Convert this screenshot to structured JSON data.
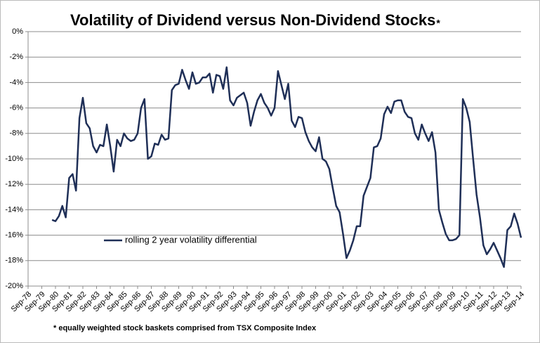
{
  "chart_data": {
    "type": "line",
    "title": "Volatility of Dividend versus Non-Dividend Stocks",
    "title_mark": "*",
    "footnote": "* equally weighted stock baskets comprised from TSX Composite Index",
    "grid": true,
    "legend_position": "lower left",
    "xlim": [
      "1978-09",
      "2014-09"
    ],
    "ylim": [
      -20,
      0
    ],
    "yticks": [
      {
        "value": 0,
        "label": "0%"
      },
      {
        "value": -2,
        "label": "-2%"
      },
      {
        "value": -4,
        "label": "-4%"
      },
      {
        "value": -6,
        "label": "-6%"
      },
      {
        "value": -8,
        "label": "-8%"
      },
      {
        "value": -10,
        "label": "-10%"
      },
      {
        "value": -12,
        "label": "-12%"
      },
      {
        "value": -14,
        "label": "-14%"
      },
      {
        "value": -16,
        "label": "-16%"
      },
      {
        "value": -18,
        "label": "-18%"
      },
      {
        "value": -20,
        "label": "-20%"
      }
    ],
    "xticks": [
      {
        "value": "1978-09",
        "label": "Sep-78"
      },
      {
        "value": "1979-09",
        "label": "Sep-79"
      },
      {
        "value": "1980-09",
        "label": "Sep-80"
      },
      {
        "value": "1981-09",
        "label": "Sep-81"
      },
      {
        "value": "1982-09",
        "label": "Sep-82"
      },
      {
        "value": "1983-09",
        "label": "Sep-83"
      },
      {
        "value": "1984-09",
        "label": "Sep-84"
      },
      {
        "value": "1985-09",
        "label": "Sep-85"
      },
      {
        "value": "1986-09",
        "label": "Sep-86"
      },
      {
        "value": "1987-09",
        "label": "Sep-87"
      },
      {
        "value": "1988-09",
        "label": "Sep-88"
      },
      {
        "value": "1989-09",
        "label": "Sep-89"
      },
      {
        "value": "1990-09",
        "label": "Sep-90"
      },
      {
        "value": "1991-09",
        "label": "Sep-91"
      },
      {
        "value": "1992-09",
        "label": "Sep-92"
      },
      {
        "value": "1993-09",
        "label": "Sep-93"
      },
      {
        "value": "1994-09",
        "label": "Sep-94"
      },
      {
        "value": "1995-09",
        "label": "Sep-95"
      },
      {
        "value": "1996-09",
        "label": "Sep-96"
      },
      {
        "value": "1997-09",
        "label": "Sep-97"
      },
      {
        "value": "1998-09",
        "label": "Sep-98"
      },
      {
        "value": "1999-09",
        "label": "Sep-99"
      },
      {
        "value": "2000-09",
        "label": "Sep-00"
      },
      {
        "value": "2001-09",
        "label": "Sep-01"
      },
      {
        "value": "2002-09",
        "label": "Sep-02"
      },
      {
        "value": "2003-09",
        "label": "Sep-03"
      },
      {
        "value": "2004-09",
        "label": "Sep-04"
      },
      {
        "value": "2005-09",
        "label": "Sep-05"
      },
      {
        "value": "2006-09",
        "label": "Sep-06"
      },
      {
        "value": "2007-09",
        "label": "Sep-07"
      },
      {
        "value": "2008-09",
        "label": "Sep-08"
      },
      {
        "value": "2009-09",
        "label": "Sep-09"
      },
      {
        "value": "2010-09",
        "label": "Sep-10"
      },
      {
        "value": "2011-09",
        "label": "Sep-11"
      },
      {
        "value": "2012-09",
        "label": "Sep-12"
      },
      {
        "value": "2013-09",
        "label": "Sep-13"
      },
      {
        "value": "2014-09",
        "label": "Sep-14"
      }
    ],
    "x": [
      "1980-06",
      "1980-09",
      "1980-12",
      "1981-03",
      "1981-06",
      "1981-09",
      "1981-12",
      "1982-03",
      "1982-06",
      "1982-09",
      "1982-12",
      "1983-03",
      "1983-06",
      "1983-09",
      "1983-12",
      "1984-03",
      "1984-06",
      "1984-09",
      "1984-12",
      "1985-03",
      "1985-06",
      "1985-09",
      "1985-12",
      "1986-03",
      "1986-06",
      "1986-09",
      "1986-12",
      "1987-03",
      "1987-06",
      "1987-09",
      "1987-12",
      "1988-03",
      "1988-06",
      "1988-09",
      "1988-12",
      "1989-03",
      "1989-06",
      "1989-09",
      "1989-12",
      "1990-03",
      "1990-06",
      "1990-09",
      "1990-12",
      "1991-03",
      "1991-06",
      "1991-09",
      "1991-12",
      "1992-03",
      "1992-06",
      "1992-09",
      "1992-12",
      "1993-03",
      "1993-06",
      "1993-09",
      "1993-12",
      "1994-03",
      "1994-06",
      "1994-09",
      "1994-12",
      "1995-03",
      "1995-06",
      "1995-09",
      "1995-12",
      "1996-03",
      "1996-06",
      "1996-09",
      "1996-12",
      "1997-03",
      "1997-06",
      "1997-09",
      "1997-12",
      "1998-03",
      "1998-06",
      "1998-09",
      "1998-12",
      "1999-03",
      "1999-06",
      "1999-09",
      "1999-12",
      "2000-03",
      "2000-06",
      "2000-09",
      "2000-12",
      "2001-03",
      "2001-06",
      "2001-09",
      "2001-12",
      "2002-03",
      "2002-06",
      "2002-09",
      "2002-12",
      "2003-03",
      "2003-06",
      "2003-09",
      "2003-12",
      "2004-03",
      "2004-06",
      "2004-09",
      "2004-12",
      "2005-03",
      "2005-06",
      "2005-09",
      "2005-12",
      "2006-03",
      "2006-06",
      "2006-09",
      "2006-12",
      "2007-03",
      "2007-06",
      "2007-09",
      "2007-12",
      "2008-03",
      "2008-06",
      "2008-09",
      "2008-12",
      "2009-03",
      "2009-06",
      "2009-09",
      "2009-12",
      "2010-03",
      "2010-06",
      "2010-09",
      "2010-12",
      "2011-03",
      "2011-06",
      "2011-09",
      "2011-12",
      "2012-03",
      "2012-06",
      "2012-09",
      "2012-12",
      "2013-03",
      "2013-06",
      "2013-09",
      "2013-12",
      "2014-03",
      "2014-06",
      "2014-09"
    ],
    "series": [
      {
        "name": "rolling 2 year volatility differential",
        "color": "#1f2f57",
        "values": [
          -14.8,
          -14.9,
          -14.5,
          -13.7,
          -14.6,
          -11.5,
          -11.2,
          -12.5,
          -6.8,
          -5.2,
          -7.2,
          -7.6,
          -9.0,
          -9.5,
          -8.9,
          -9.0,
          -7.3,
          -9.0,
          -11.0,
          -8.5,
          -9.0,
          -8.0,
          -8.4,
          -8.6,
          -8.5,
          -8.0,
          -6.0,
          -5.3,
          -10.0,
          -9.8,
          -8.8,
          -8.9,
          -8.1,
          -8.5,
          -8.4,
          -4.6,
          -4.2,
          -4.1,
          -3.0,
          -3.8,
          -4.5,
          -3.2,
          -4.1,
          -4.0,
          -3.6,
          -3.6,
          -3.3,
          -4.8,
          -3.4,
          -3.5,
          -4.5,
          -2.8,
          -5.4,
          -5.8,
          -5.2,
          -5.0,
          -4.8,
          -5.6,
          -7.4,
          -6.3,
          -5.4,
          -4.9,
          -5.6,
          -6.0,
          -6.6,
          -6.0,
          -3.1,
          -4.2,
          -5.3,
          -4.1,
          -7.0,
          -7.5,
          -6.7,
          -6.8,
          -7.9,
          -8.6,
          -9.1,
          -9.4,
          -8.3,
          -10.0,
          -10.2,
          -10.8,
          -12.3,
          -13.7,
          -14.2,
          -15.9,
          -17.8,
          -17.2,
          -16.4,
          -15.3,
          -15.3,
          -12.9,
          -12.2,
          -11.5,
          -9.1,
          -9.0,
          -8.4,
          -6.5,
          -5.9,
          -6.4,
          -5.5,
          -5.4,
          -5.4,
          -6.3,
          -6.7,
          -6.8,
          -8.0,
          -8.5,
          -7.3,
          -8.0,
          -8.6,
          -7.9,
          -9.5,
          -14.0,
          -15.0,
          -15.9,
          -16.4,
          -16.4,
          -16.3,
          -16.0,
          -5.3,
          -6.0,
          -7.1,
          -10.0,
          -12.8,
          -14.6,
          -16.8,
          -17.5,
          -17.1,
          -16.6,
          -17.2,
          -17.8,
          -18.5,
          -15.6,
          -15.3,
          -14.3,
          -15.1,
          -16.2
        ]
      }
    ]
  }
}
